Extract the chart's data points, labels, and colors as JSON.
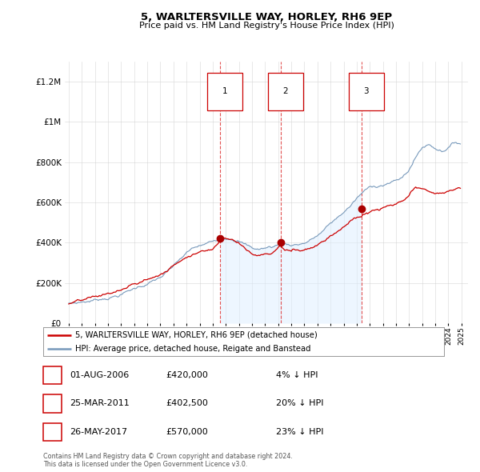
{
  "title": "5, WARLTERSVILLE WAY, HORLEY, RH6 9EP",
  "subtitle": "Price paid vs. HM Land Registry's House Price Index (HPI)",
  "ylim": [
    0,
    1300000
  ],
  "yticks": [
    0,
    200000,
    400000,
    600000,
    800000,
    1000000,
    1200000
  ],
  "transactions": [
    {
      "year": 2006.583,
      "price": 420000,
      "label": "1",
      "pct": "4% ↓ HPI",
      "display": "01-AUG-2006",
      "price_display": "£420,000"
    },
    {
      "year": 2011.208,
      "price": 402500,
      "label": "2",
      "pct": "20% ↓ HPI",
      "display": "25-MAR-2011",
      "price_display": "£402,500"
    },
    {
      "year": 2017.375,
      "price": 570000,
      "label": "3",
      "pct": "23% ↓ HPI",
      "display": "26-MAY-2017",
      "price_display": "£570,000"
    }
  ],
  "red_line_color": "#cc0000",
  "blue_line_color": "#7799bb",
  "blue_fill_color": "#ddeeff",
  "vline_color": "#dd3333",
  "dot_color": "#aa0000",
  "background_color": "#ffffff",
  "grid_color": "#cccccc",
  "legend_label_red": "5, WARLTERSVILLE WAY, HORLEY, RH6 9EP (detached house)",
  "legend_label_blue": "HPI: Average price, detached house, Reigate and Banstead",
  "footer": "Contains HM Land Registry data © Crown copyright and database right 2024.\nThis data is licensed under the Open Government Licence v3.0.",
  "x_start_year": 1995,
  "x_end_year": 2025,
  "hpi_key_years": [
    1995.0,
    1995.5,
    1996.0,
    1996.5,
    1997.0,
    1997.5,
    1998.0,
    1998.5,
    1999.0,
    1999.5,
    2000.0,
    2000.5,
    2001.0,
    2001.5,
    2002.0,
    2002.5,
    2003.0,
    2003.5,
    2004.0,
    2004.5,
    2005.0,
    2005.5,
    2006.0,
    2006.5,
    2007.0,
    2007.5,
    2008.0,
    2008.5,
    2009.0,
    2009.5,
    2010.0,
    2010.5,
    2011.0,
    2011.5,
    2012.0,
    2012.5,
    2013.0,
    2013.5,
    2014.0,
    2014.5,
    2015.0,
    2015.5,
    2016.0,
    2016.5,
    2017.0,
    2017.5,
    2018.0,
    2018.5,
    2019.0,
    2019.5,
    2020.0,
    2020.5,
    2021.0,
    2021.5,
    2022.0,
    2022.5,
    2023.0,
    2023.5,
    2024.0,
    2024.5
  ],
  "hpi_key_vals": [
    100000,
    103000,
    108000,
    112000,
    118000,
    125000,
    134000,
    142000,
    152000,
    165000,
    178000,
    192000,
    205000,
    218000,
    232000,
    255000,
    278000,
    310000,
    338000,
    358000,
    368000,
    375000,
    385000,
    400000,
    415000,
    420000,
    410000,
    390000,
    370000,
    365000,
    370000,
    375000,
    385000,
    390000,
    388000,
    392000,
    400000,
    415000,
    435000,
    460000,
    490000,
    515000,
    545000,
    575000,
    610000,
    640000,
    660000,
    670000,
    680000,
    690000,
    695000,
    710000,
    750000,
    810000,
    860000,
    875000,
    860000,
    850000,
    870000,
    890000
  ],
  "red_key_years": [
    1995.0,
    1995.5,
    1996.0,
    1996.5,
    1997.0,
    1997.5,
    1998.0,
    1998.5,
    1999.0,
    1999.5,
    2000.0,
    2000.5,
    2001.0,
    2001.5,
    2002.0,
    2002.5,
    2003.0,
    2003.5,
    2004.0,
    2004.5,
    2005.0,
    2005.5,
    2006.0,
    2006.583,
    2007.0,
    2007.5,
    2008.0,
    2008.5,
    2009.0,
    2009.5,
    2010.0,
    2010.5,
    2011.208,
    2011.5,
    2012.0,
    2012.5,
    2013.0,
    2013.5,
    2014.0,
    2014.5,
    2015.0,
    2015.5,
    2016.0,
    2016.5,
    2017.375,
    2017.5,
    2018.0,
    2018.5,
    2019.0,
    2019.5,
    2020.0,
    2020.5,
    2021.0,
    2021.5,
    2022.0,
    2022.5,
    2023.0,
    2023.5,
    2024.0,
    2024.5
  ],
  "red_key_vals": [
    96000,
    99000,
    104000,
    108000,
    113000,
    120000,
    128000,
    136000,
    145000,
    157000,
    169000,
    182000,
    194000,
    206000,
    220000,
    241000,
    263000,
    293000,
    320000,
    340000,
    350000,
    358000,
    370000,
    420000,
    435000,
    428000,
    408000,
    382000,
    358000,
    352000,
    358000,
    363000,
    402500,
    378000,
    374000,
    378000,
    386000,
    400000,
    418000,
    442000,
    470000,
    494000,
    522000,
    550000,
    570000,
    580000,
    590000,
    598000,
    604000,
    612000,
    615000,
    624000,
    648000,
    686000,
    668000,
    658000,
    650000,
    644000,
    655000,
    670000
  ]
}
